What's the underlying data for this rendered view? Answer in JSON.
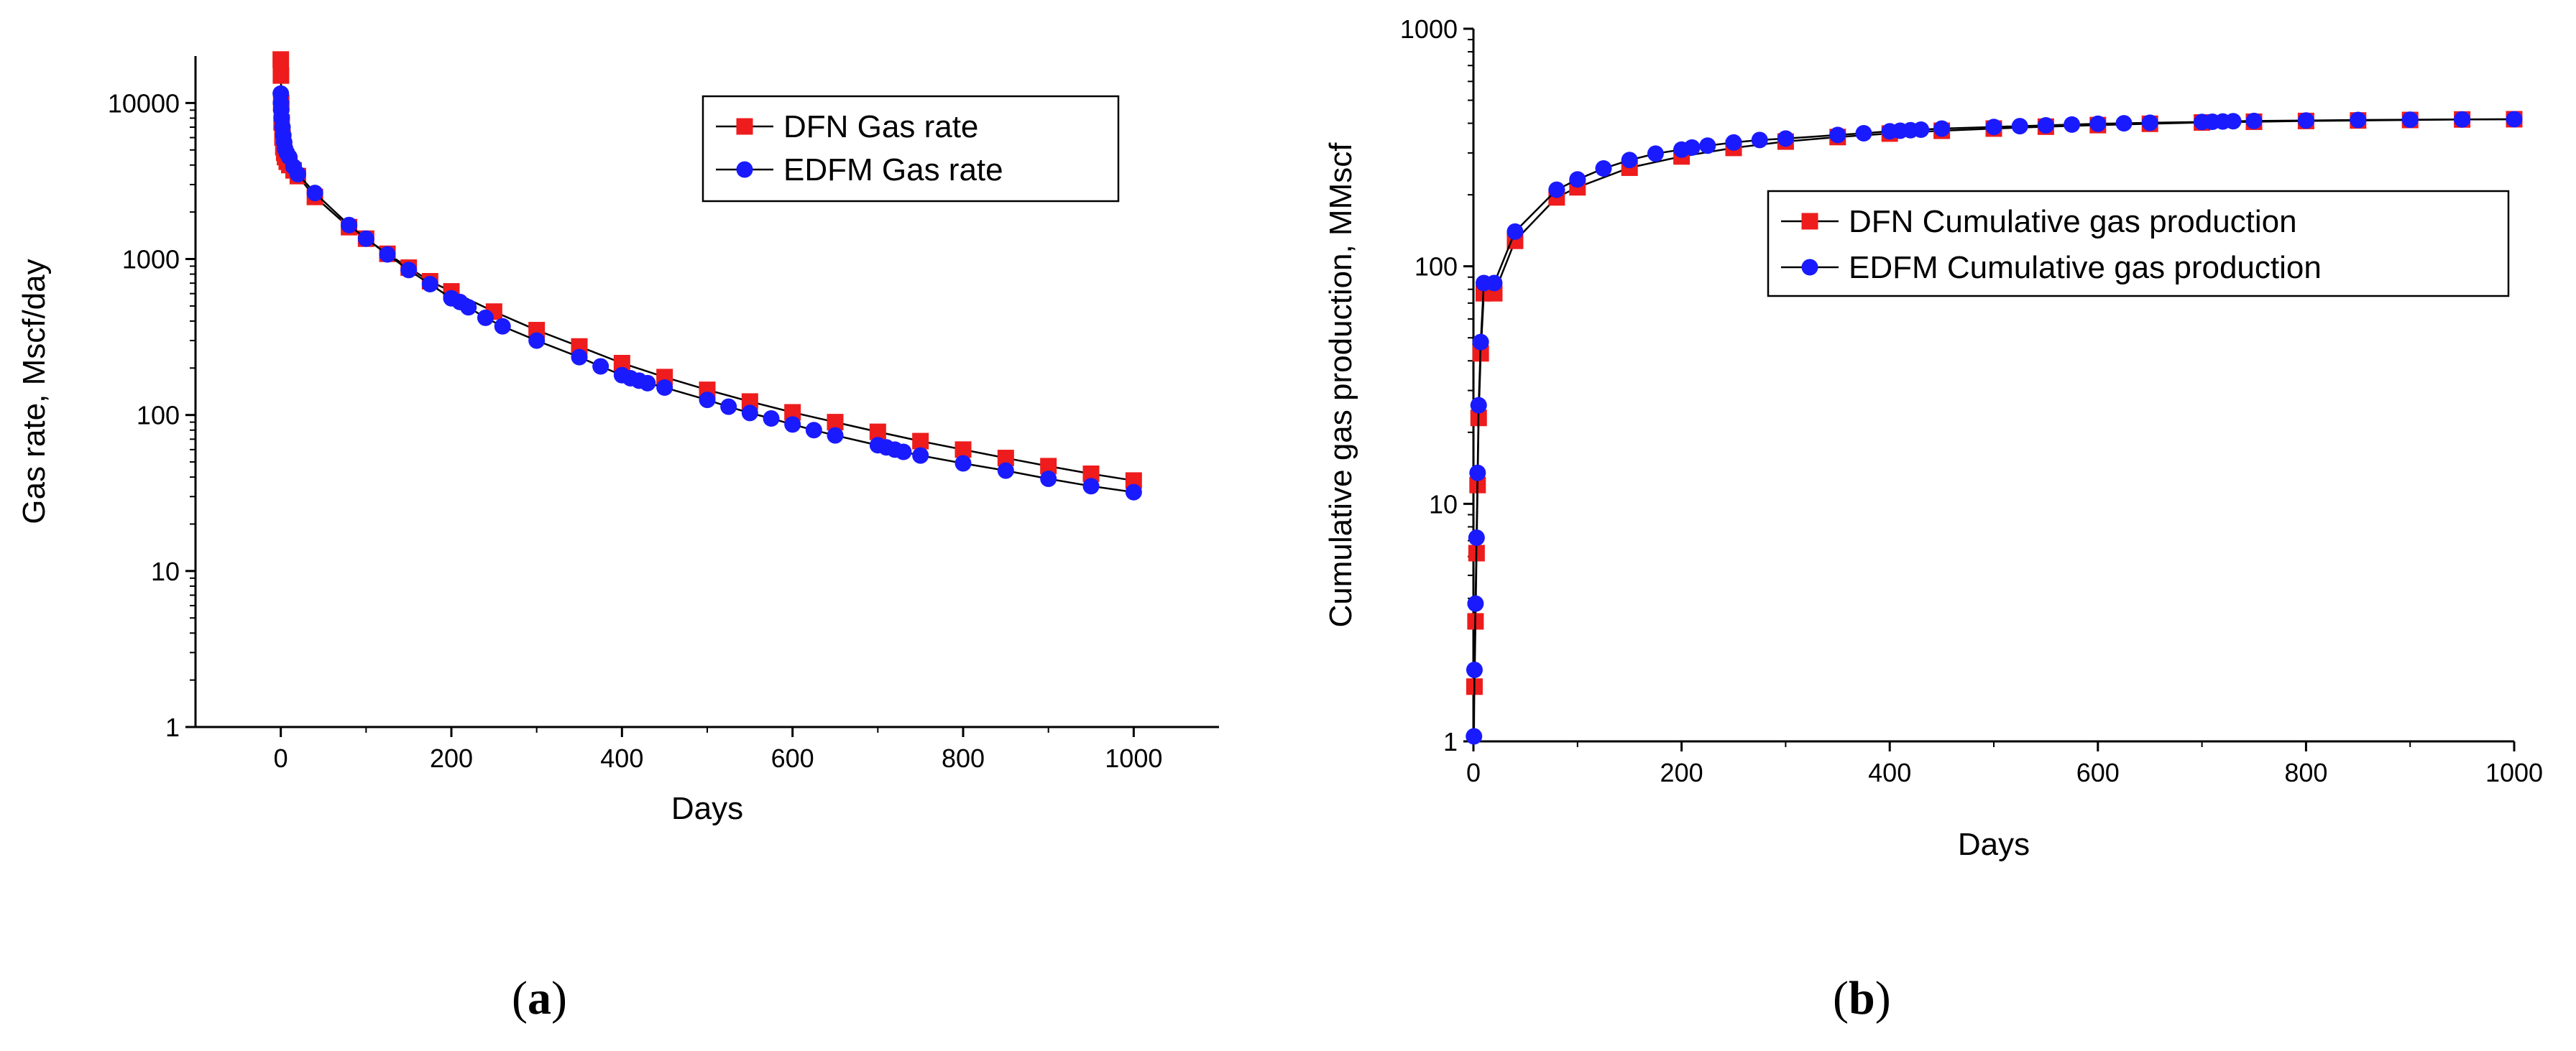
{
  "colors": {
    "dfn": "#ee1c1c",
    "edfm": "#1a1aff",
    "axis": "#000000"
  },
  "figure_labels": {
    "a": "a",
    "b": "b"
  },
  "chart_data": [
    {
      "id": "a",
      "type": "line",
      "yscale": "log",
      "title": "",
      "xlabel": "Days",
      "ylabel": "Gas rate, Mscf/day",
      "xlim": [
        -100,
        1100
      ],
      "ylim": [
        1,
        20000
      ],
      "xticks": [
        0,
        200,
        400,
        600,
        800,
        1000
      ],
      "yticks": [
        1,
        10,
        100,
        1000,
        10000
      ],
      "xtick_labels": [
        "0",
        "200",
        "400",
        "600",
        "800",
        "1000"
      ],
      "ytick_labels": [
        "1",
        "10",
        "100",
        "1000",
        "10000"
      ],
      "legend_position": "top-right",
      "series": [
        {
          "name": "DFN  Gas rate",
          "marker": "square",
          "color_key": "dfn",
          "x": [
            0,
            0.2,
            0.5,
            1,
            2,
            3,
            4,
            5,
            7,
            10,
            15,
            20,
            40,
            80,
            100,
            125,
            150,
            175,
            200,
            250,
            300,
            350,
            400,
            450,
            500,
            550,
            600,
            650,
            700,
            750,
            800,
            850,
            900,
            950,
            1000
          ],
          "y": [
            19000,
            15000,
            10000,
            7500,
            6000,
            5200,
            4800,
            4500,
            4200,
            4000,
            3700,
            3400,
            2500,
            1600,
            1350,
            1080,
            880,
            720,
            620,
            460,
            350,
            275,
            215,
            175,
            145,
            122,
            104,
            90,
            78,
            68,
            60,
            53,
            47,
            42,
            38
          ]
        },
        {
          "name": "EDFM Gas rate",
          "marker": "circle",
          "color_key": "edfm",
          "x": [
            0,
            0.2,
            0.5,
            1,
            2,
            3,
            4,
            5,
            7,
            10,
            15,
            20,
            40,
            80,
            100,
            125,
            150,
            175,
            200,
            210,
            220,
            240,
            260,
            300,
            350,
            375,
            400,
            410,
            420,
            430,
            450,
            500,
            525,
            550,
            575,
            600,
            625,
            650,
            700,
            710,
            720,
            730,
            750,
            800,
            850,
            900,
            950,
            1000
          ],
          "y": [
            11500,
            10000,
            9000,
            8000,
            7000,
            6200,
            5600,
            5100,
            4800,
            4500,
            3900,
            3500,
            2650,
            1650,
            1350,
            1070,
            850,
            690,
            560,
            530,
            490,
            420,
            370,
            300,
            235,
            205,
            180,
            172,
            166,
            160,
            150,
            125,
            113,
            103,
            95,
            87,
            80,
            74,
            64,
            62,
            60,
            58,
            55,
            49,
            44,
            39,
            35,
            32
          ]
        }
      ]
    },
    {
      "id": "b",
      "type": "line",
      "yscale": "log",
      "title": "",
      "xlabel": "Days",
      "ylabel": "Cumulative gas production, MMscf",
      "xlim": [
        0,
        1000
      ],
      "ylim": [
        1,
        1000
      ],
      "xticks": [
        0,
        200,
        400,
        600,
        800,
        1000
      ],
      "yticks": [
        1,
        10,
        100,
        1000
      ],
      "xtick_labels": [
        "0",
        "200",
        "400",
        "600",
        "800",
        "1000"
      ],
      "ytick_labels": [
        "1",
        "10",
        "100",
        "1000"
      ],
      "legend_position": "center-right",
      "series": [
        {
          "name": "DFN Cumulative gas production",
          "marker": "square",
          "color_key": "dfn",
          "x": [
            1,
            2,
            3,
            4,
            5,
            7,
            10,
            20,
            40,
            80,
            100,
            150,
            200,
            250,
            300,
            350,
            400,
            450,
            500,
            550,
            600,
            650,
            700,
            750,
            800,
            850,
            900,
            950,
            1000
          ],
          "y": [
            1.7,
            3.2,
            6.2,
            12,
            23,
            43,
            77,
            77,
            128,
            195,
            215,
            260,
            290,
            315,
            335,
            350,
            362,
            372,
            380,
            387,
            393,
            398,
            403,
            406,
            409,
            411,
            413,
            415,
            416
          ]
        },
        {
          "name": "EDFM Cumulative gas production",
          "marker": "circle",
          "color_key": "edfm",
          "x": [
            0.5,
            1,
            2,
            3,
            4,
            5,
            7,
            10,
            20,
            40,
            80,
            100,
            125,
            150,
            175,
            200,
            210,
            225,
            250,
            275,
            300,
            350,
            375,
            400,
            410,
            420,
            430,
            450,
            500,
            525,
            550,
            575,
            600,
            625,
            650,
            700,
            710,
            720,
            730,
            750,
            800,
            850,
            900,
            950,
            1000
          ],
          "y": [
            1.05,
            2.0,
            3.8,
            7.2,
            13.5,
            26,
            48,
            85,
            85,
            140,
            210,
            232,
            258,
            280,
            298,
            310,
            316,
            322,
            332,
            340,
            345,
            357,
            363,
            370,
            372,
            374,
            376,
            380,
            386,
            389,
            392,
            395,
            398,
            400,
            402,
            405,
            406,
            407,
            408,
            409,
            411,
            413,
            414,
            415,
            416
          ]
        }
      ]
    }
  ]
}
